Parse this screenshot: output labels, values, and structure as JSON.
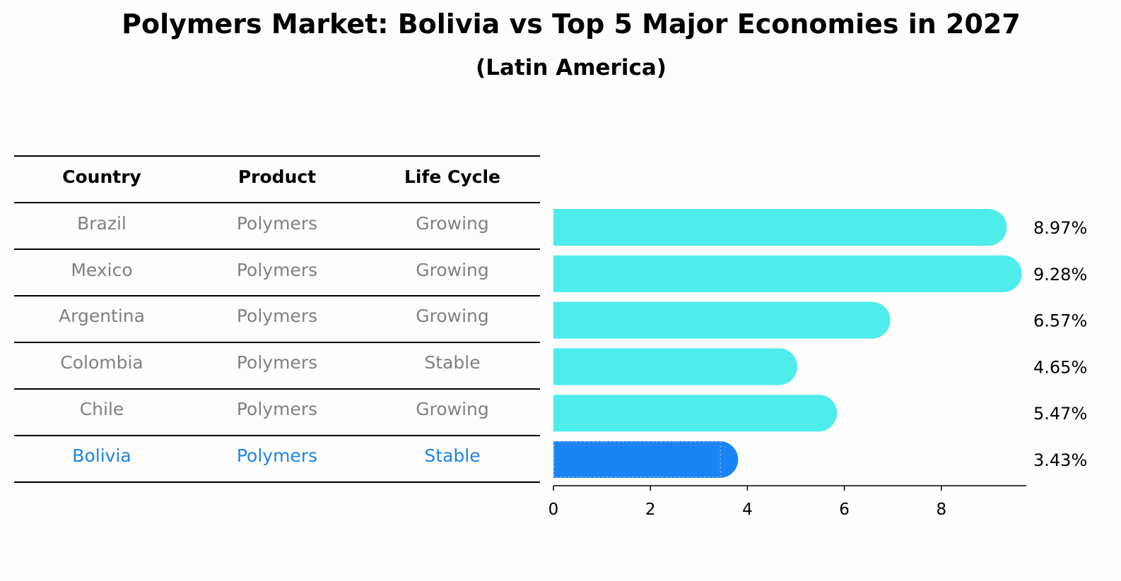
{
  "title": "Polymers Market: Bolivia vs Top 5 Major Economies in 2027",
  "subtitle": "(Latin America)",
  "table": {
    "headers": [
      "Country",
      "Product",
      "Life Cycle"
    ],
    "rows": [
      {
        "country": "Brazil",
        "product": "Polymers",
        "life_cycle": "Growing"
      },
      {
        "country": "Mexico",
        "product": "Polymers",
        "life_cycle": "Growing"
      },
      {
        "country": "Argentina",
        "product": "Polymers",
        "life_cycle": "Growing"
      },
      {
        "country": "Colombia",
        "product": "Polymers",
        "life_cycle": "Stable"
      },
      {
        "country": "Chile",
        "product": "Polymers",
        "life_cycle": "Growing"
      },
      {
        "country": "Bolivia",
        "product": "Polymers",
        "life_cycle": "Stable"
      }
    ]
  },
  "colors": {
    "bar": "#4eeceb",
    "highlight_bar": "#1a84f5",
    "row_text": "#808080",
    "highlight_text": "#1f83df"
  },
  "chart_data": {
    "type": "bar",
    "orientation": "horizontal",
    "categories": [
      "Brazil",
      "Mexico",
      "Argentina",
      "Colombia",
      "Chile",
      "Bolivia"
    ],
    "values": [
      8.97,
      9.28,
      6.57,
      4.65,
      5.47,
      3.43
    ],
    "value_labels": [
      "8.97%",
      "9.28%",
      "6.57%",
      "4.65%",
      "5.47%",
      "3.43%"
    ],
    "highlight": "Bolivia",
    "xticks": [
      0,
      2,
      4,
      6,
      8
    ],
    "xlim": [
      0,
      9.75
    ],
    "xlabel": "",
    "ylabel": ""
  }
}
